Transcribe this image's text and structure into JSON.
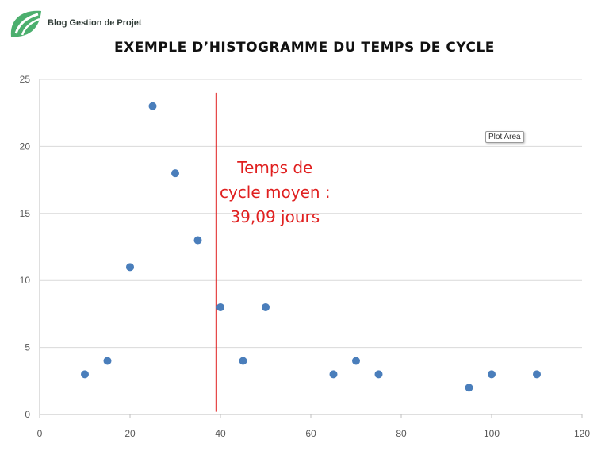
{
  "brand": {
    "name": "Blog Gestion de Projet",
    "logo_icon": "leaf-logo-icon",
    "logo_color": "#4caf6e"
  },
  "tooltip": {
    "label": "Plot Area"
  },
  "chart_data": {
    "type": "scatter",
    "title": "EXEMPLE D’HISTOGRAMME DU TEMPS DE CYCLE",
    "xlabel": "",
    "ylabel": "",
    "xlim": [
      0,
      120
    ],
    "ylim": [
      0,
      25
    ],
    "xticks": [
      0,
      20,
      40,
      60,
      80,
      100,
      120
    ],
    "yticks": [
      0,
      5,
      10,
      15,
      20,
      25
    ],
    "grid": "horizontal",
    "legend": "none",
    "series": [
      {
        "color": "#4a7ebb",
        "points": [
          {
            "x": 10,
            "y": 3
          },
          {
            "x": 15,
            "y": 4
          },
          {
            "x": 20,
            "y": 11
          },
          {
            "x": 25,
            "y": 23
          },
          {
            "x": 30,
            "y": 18
          },
          {
            "x": 35,
            "y": 13
          },
          {
            "x": 40,
            "y": 8
          },
          {
            "x": 45,
            "y": 4
          },
          {
            "x": 50,
            "y": 8
          },
          {
            "x": 65,
            "y": 3
          },
          {
            "x": 70,
            "y": 4
          },
          {
            "x": 75,
            "y": 3
          },
          {
            "x": 95,
            "y": 2
          },
          {
            "x": 100,
            "y": 3
          },
          {
            "x": 110,
            "y": 3
          }
        ]
      }
    ],
    "reference_line": {
      "x": 39.09,
      "y_from": 0.2,
      "y_to": 24,
      "color": "#e02020",
      "label_lines": [
        "Temps de",
        "cycle moyen :",
        "39,09 jours"
      ]
    }
  }
}
